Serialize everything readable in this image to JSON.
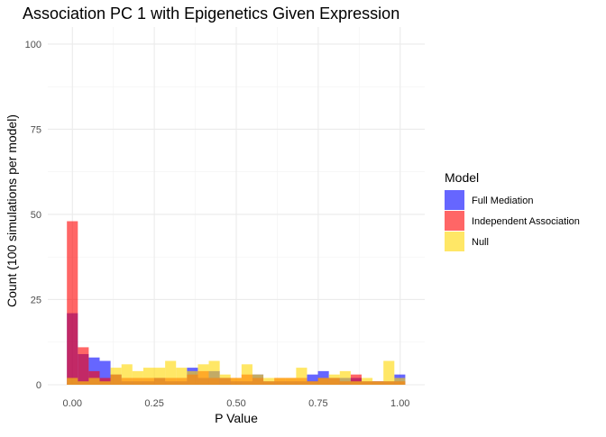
{
  "chart_data": {
    "type": "histogram",
    "title": "Association PC 1 with Epigenetics Given Expression",
    "xlabel": "P Value",
    "ylabel": "Count (100 simulations per model)",
    "xlim": [
      -0.075,
      1.075
    ],
    "ylim": [
      0,
      105
    ],
    "x_ticks": [
      {
        "value": 0,
        "label": "0.00"
      },
      {
        "value": 0.25,
        "label": "0.25"
      },
      {
        "value": 0.5,
        "label": "0.50"
      },
      {
        "value": 0.75,
        "label": "0.75"
      },
      {
        "value": 1.0,
        "label": "1.00"
      }
    ],
    "y_ticks": [
      {
        "value": 0,
        "label": "0"
      },
      {
        "value": 25,
        "label": "25"
      },
      {
        "value": 50,
        "label": "50"
      },
      {
        "value": 75,
        "label": "75"
      },
      {
        "value": 100,
        "label": "100"
      }
    ],
    "grid": true,
    "legend": {
      "title": "Model",
      "position": "right"
    },
    "bin_width": 0.0333,
    "bin_start": -0.0167,
    "series": [
      {
        "name": "Full Mediation",
        "color": "#0000FF",
        "values": [
          21,
          9,
          8,
          7,
          3,
          1,
          1,
          1,
          2,
          1,
          1,
          5,
          2,
          4,
          2,
          1,
          1,
          3,
          1,
          1,
          1,
          1,
          3,
          4,
          2,
          2,
          2,
          1,
          1,
          1,
          3
        ]
      },
      {
        "name": "Independent Association",
        "color": "#FF0000",
        "values": [
          48,
          11,
          4,
          2,
          3,
          2,
          2,
          2,
          2,
          2,
          2,
          3,
          4,
          2,
          2,
          2,
          3,
          2,
          1,
          2,
          2,
          2,
          1,
          2,
          2,
          1,
          3,
          1,
          1,
          1,
          1
        ]
      },
      {
        "name": "Null",
        "color": "#FFD700",
        "values": [
          2,
          1,
          2,
          1,
          5,
          6,
          4,
          5,
          5,
          7,
          5,
          4,
          6,
          7,
          3,
          2,
          6,
          3,
          2,
          2,
          2,
          5,
          1,
          2,
          3,
          4,
          1,
          2,
          1,
          7,
          2
        ]
      }
    ]
  }
}
